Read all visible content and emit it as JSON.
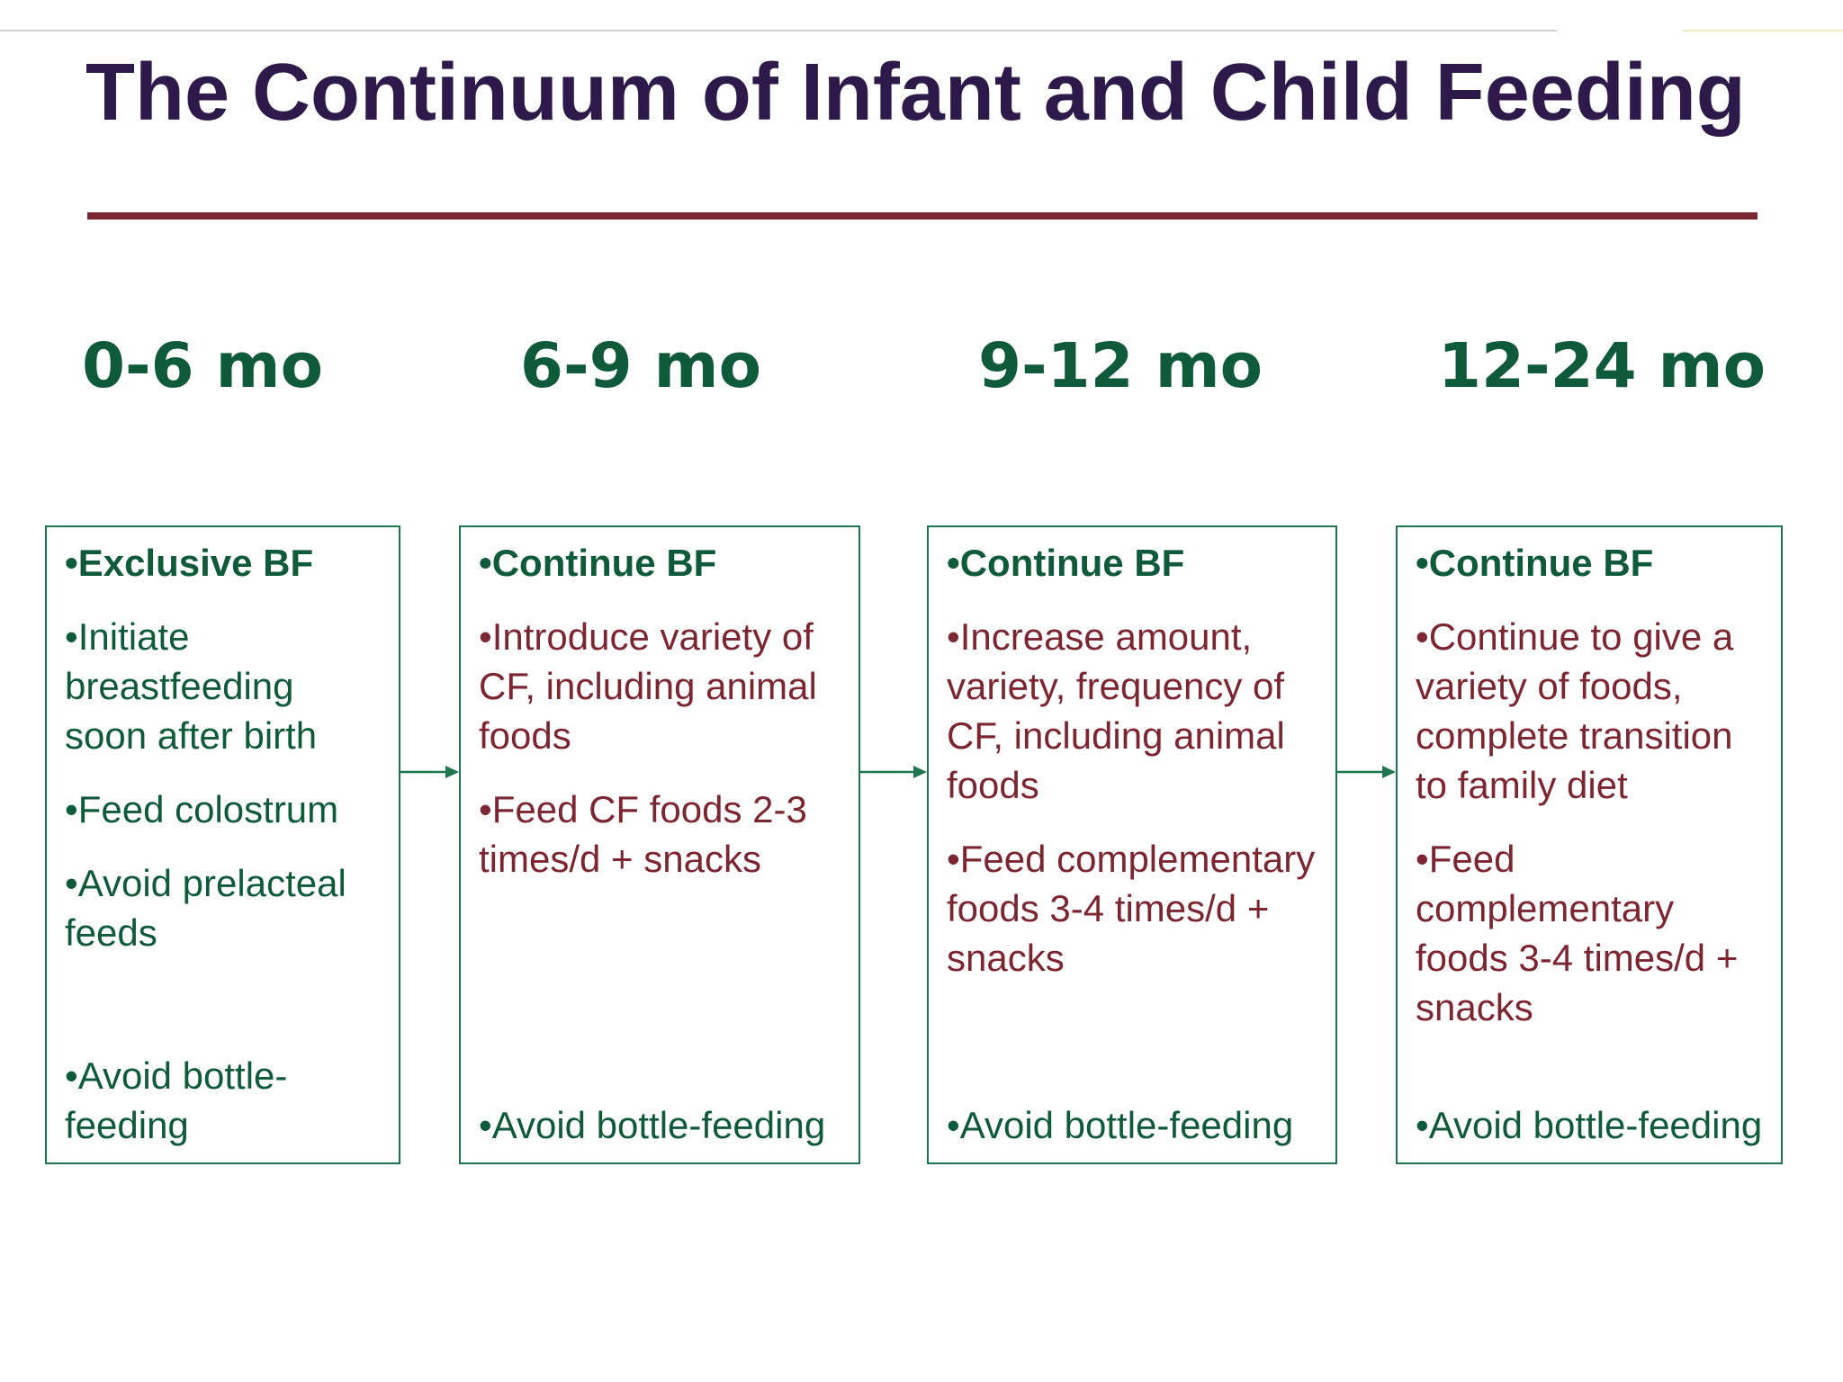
{
  "title": "The Continuum of Infant and Child Feeding",
  "colors": {
    "title": "#2d1a4a",
    "accent_rule": "#7b2630",
    "green": "#0f5a3a",
    "red": "#7b2630",
    "box_border": "#1f7550"
  },
  "stages": [
    {
      "label": "0-6 mo",
      "heading": "•Exclusive BF",
      "items": [
        "•Initiate breastfeeding soon after birth",
        "•Feed colostrum",
        "•Avoid prelacteal feeds"
      ],
      "footer": "•Avoid bottle-feeding"
    },
    {
      "label": "6-9 mo",
      "heading": "•Continue BF",
      "items": [
        "•Introduce variety of CF, including animal foods",
        "•Feed CF foods 2-3 times/d + snacks"
      ],
      "footer": "•Avoid bottle-feeding"
    },
    {
      "label": "9-12 mo",
      "heading": "•Continue BF",
      "items": [
        "•Increase amount, variety, frequency of CF, including animal foods",
        "•Feed complementary foods 3-4 times/d + snacks"
      ],
      "footer": "•Avoid bottle-feeding"
    },
    {
      "label": "12-24 mo",
      "heading": "•Continue BF",
      "items": [
        "•Continue to give a variety of foods, complete transition to family diet",
        "•Feed complementary foods 3-4 times/d + snacks"
      ],
      "footer": "•Avoid bottle-feeding"
    }
  ]
}
